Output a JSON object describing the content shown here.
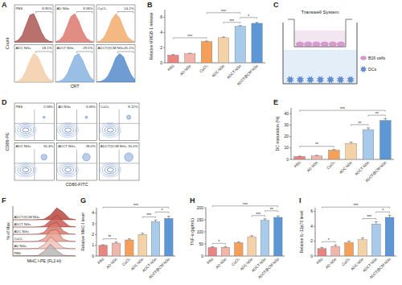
{
  "chart_data": [
    {
      "type": "histogram_grid",
      "panel": "A",
      "x_label": "CRT",
      "y_label": "Count",
      "tick_labels": false,
      "xlim": [
        0,
        10
      ],
      "ylim": [
        0,
        100
      ],
      "x": [
        0,
        1,
        2,
        3,
        4,
        5,
        6,
        7,
        8,
        9,
        10
      ],
      "series": [
        {
          "name": "PBS",
          "color": "#a0413c",
          "values": [
            2,
            8,
            25,
            60,
            95,
            100,
            70,
            35,
            12,
            4,
            1
          ],
          "gate_percent": {
            "value": 8.95,
            "label": "8.95%"
          }
        },
        {
          "name": "AD NGs",
          "color": "#d7675e",
          "values": [
            2,
            7,
            22,
            55,
            90,
            100,
            75,
            40,
            15,
            5,
            1
          ],
          "gate_percent": {
            "value": 9.58,
            "label": "9.58%"
          }
        },
        {
          "name": "CuCl₂",
          "color": "#f0a05a",
          "values": [
            1,
            5,
            18,
            45,
            80,
            100,
            85,
            50,
            20,
            7,
            2
          ],
          "gate_percent": {
            "value": 14.2,
            "label": "14.2%"
          }
        },
        {
          "name": "ADC NGs",
          "color": "#f2c79c",
          "values": [
            1,
            4,
            15,
            40,
            75,
            100,
            90,
            60,
            28,
            10,
            3
          ],
          "gate_percent": {
            "value": 18.1,
            "label": "18.1%"
          }
        },
        {
          "name": "ADCT NGs",
          "color": "#79a8dc",
          "values": [
            1,
            3,
            10,
            28,
            60,
            92,
            100,
            78,
            45,
            18,
            5
          ],
          "gate_percent": {
            "value": 29.5,
            "label": "29.5%"
          }
        },
        {
          "name": "ADCT@CM NGs",
          "color": "#3f7cc4",
          "values": [
            1,
            2,
            8,
            22,
            50,
            85,
            100,
            88,
            55,
            25,
            8
          ],
          "gate_percent": {
            "value": 35.1,
            "label": "35.1%"
          }
        }
      ]
    },
    {
      "type": "bar",
      "panel": "B",
      "y_label": "Relative HMGB-1 release",
      "categories": [
        "PBS",
        "AD NGs",
        "CuCl₂",
        "ADC NGs",
        "ADCT NGs",
        "ADCT@CM NGs"
      ],
      "values": [
        1.0,
        1.2,
        2.8,
        3.3,
        4.8,
        5.2
      ],
      "errors": [
        0.08,
        0.06,
        0.07,
        0.1,
        0.1,
        0.12
      ],
      "colors": [
        "#e98580",
        "#f2b5ac",
        "#f5a05a",
        "#f3d2a8",
        "#a8cbeb",
        "#5e97d6"
      ],
      "ylim": [
        0,
        7
      ],
      "yticks": [
        0,
        2,
        4,
        6
      ],
      "annotations": [
        {
          "from": 0,
          "to": 2,
          "label": "***"
        },
        {
          "from": 3,
          "to": 4,
          "label": "***"
        },
        {
          "from": 4,
          "to": 5,
          "label": "*"
        },
        {
          "from": 2,
          "to": 4,
          "label": "***"
        }
      ]
    },
    {
      "type": "diagram",
      "panel": "C",
      "title": "Transwell System",
      "annotations": [
        "B16 cells",
        "DCs"
      ]
    },
    {
      "type": "scatter_grid",
      "panel": "D",
      "x_label": "CD80-FITC",
      "y_label": "CD86-PE",
      "tick_labels": false,
      "plots": [
        {
          "name": "PBS",
          "gate_percent": {
            "value": 2.58,
            "label": "2.58%"
          }
        },
        {
          "name": "AD NGs",
          "gate_percent": {
            "value": 3.09,
            "label": "3.09%"
          }
        },
        {
          "name": "CuCl₂",
          "gate_percent": {
            "value": 8.12,
            "label": "8.12%"
          }
        },
        {
          "name": "ADC NGs",
          "gate_percent": {
            "value": 16.4,
            "label": "16.4%"
          }
        },
        {
          "name": "ADCT NGs",
          "gate_percent": {
            "value": 28.0,
            "label": "28.0%"
          }
        },
        {
          "name": "ADCT@CM NGs",
          "gate_percent": {
            "value": 35.0,
            "label": "35.0%"
          }
        }
      ]
    },
    {
      "type": "bar",
      "panel": "E",
      "y_label": "DC maturation (%)",
      "categories": [
        "PBS",
        "AD NGs",
        "CuCl₂",
        "ADC NGs",
        "ADCT NGs",
        "ADCT@CM NGs"
      ],
      "values": [
        2.5,
        3.1,
        8,
        14,
        26,
        34
      ],
      "errors": [
        0.4,
        0.5,
        0.6,
        1.2,
        1.5,
        1.8
      ],
      "colors": [
        "#e98580",
        "#f2b5ac",
        "#f5a05a",
        "#f3d2a8",
        "#a8cbeb",
        "#5e97d6"
      ],
      "ylim": [
        0,
        45
      ],
      "yticks": [
        0,
        10,
        20,
        30,
        40
      ],
      "annotations": [
        {
          "from": 0,
          "to": 2,
          "label": "**"
        },
        {
          "from": 3,
          "to": 4,
          "label": "**"
        },
        {
          "from": 4,
          "to": 5,
          "label": "**"
        },
        {
          "from": 0,
          "to": 5,
          "label": "***"
        }
      ]
    },
    {
      "type": "histogram_overlay",
      "panel": "F",
      "x_label": "MHC I-PE (FL2-H)",
      "y_label": "% of Max",
      "tick_labels": false,
      "xlim": [
        0,
        10
      ],
      "ylim": [
        0,
        100
      ],
      "x": [
        0,
        1,
        2,
        3,
        4,
        5,
        6,
        7,
        8,
        9,
        10
      ],
      "series": [
        {
          "name": "PBS",
          "color": "#b8b8b8",
          "values": [
            0,
            0,
            0,
            1,
            5,
            40,
            100,
            45,
            8,
            1,
            0
          ]
        },
        {
          "name": "AD NGs",
          "color": "#f2c4bc",
          "values": [
            0,
            0,
            0,
            1,
            4,
            35,
            100,
            55,
            10,
            1,
            0
          ]
        },
        {
          "name": "CuCl₂",
          "color": "#e8a090",
          "values": [
            0,
            0,
            0,
            0,
            3,
            25,
            90,
            100,
            20,
            3,
            0
          ]
        },
        {
          "name": "ADC NGs",
          "color": "#d9786a",
          "values": [
            0,
            0,
            0,
            0,
            2,
            18,
            80,
            100,
            30,
            4,
            0
          ]
        },
        {
          "name": "ADCT NGs",
          "color": "#c95a50",
          "values": [
            0,
            0,
            0,
            0,
            1,
            10,
            55,
            100,
            50,
            8,
            1
          ]
        },
        {
          "name": "ADCT@CM NGs",
          "color": "#b8453d",
          "values": [
            0,
            0,
            0,
            0,
            1,
            6,
            40,
            100,
            65,
            12,
            1
          ]
        }
      ]
    },
    {
      "type": "bar",
      "panel": "G",
      "y_label": "Relative MHC-I level",
      "categories": [
        "PBS",
        "AD NGs",
        "CuCl₂",
        "ADC NGs",
        "ADCT NGs",
        "ADCT@CM NGs"
      ],
      "values": [
        1.0,
        1.2,
        1.5,
        2.0,
        3.2,
        3.5
      ],
      "errors": [
        0.05,
        0.1,
        0.1,
        0.12,
        0.15,
        0.2
      ],
      "colors": [
        "#e98580",
        "#f2b5ac",
        "#f5a05a",
        "#f3d2a8",
        "#a8cbeb",
        "#5e97d6"
      ],
      "ylim": [
        0,
        4.5
      ],
      "yticks": [
        0,
        1,
        2,
        3,
        4
      ],
      "annotations": [
        {
          "from": 0,
          "to": 1,
          "label": "**"
        },
        {
          "from": 3,
          "to": 4,
          "label": "***"
        },
        {
          "from": 4,
          "to": 5,
          "label": "*"
        },
        {
          "from": 0,
          "to": 5,
          "label": "***"
        }
      ]
    },
    {
      "type": "bar",
      "panel": "H",
      "y_label": "TNF-α (pg/mL)",
      "categories": [
        "PBS",
        "AD NGs",
        "CuCl₂",
        "ADC NGs",
        "ADCT NGs",
        "ADCT@CM NGs"
      ],
      "values": [
        35,
        36,
        55,
        80,
        148,
        160
      ],
      "errors": [
        3,
        3,
        4,
        4,
        6,
        6
      ],
      "colors": [
        "#e98580",
        "#f2b5ac",
        "#f5a05a",
        "#f3d2a8",
        "#a8cbeb",
        "#5e97d6"
      ],
      "ylim": [
        0,
        200
      ],
      "yticks": [
        0,
        50,
        100,
        150,
        200
      ],
      "annotations": [
        {
          "from": 0,
          "to": 1,
          "label": "*"
        },
        {
          "from": 3,
          "to": 4,
          "label": "***"
        },
        {
          "from": 4,
          "to": 5,
          "label": "**"
        },
        {
          "from": 0,
          "to": 5,
          "label": "***"
        }
      ]
    },
    {
      "type": "bar",
      "panel": "I",
      "y_label": "Relative IL-12p70 level",
      "categories": [
        "PBS",
        "AD NGs",
        "CuCl₂",
        "ADC NGs",
        "ADCT NGs",
        "ADCT@CM NGs"
      ],
      "values": [
        1.0,
        1.3,
        1.8,
        2.2,
        4.3,
        5.2
      ],
      "errors": [
        0.15,
        0.2,
        0.2,
        0.25,
        0.3,
        0.3
      ],
      "colors": [
        "#e98580",
        "#f2b5ac",
        "#f5a05a",
        "#f3d2a8",
        "#a8cbeb",
        "#5e97d6"
      ],
      "ylim": [
        0,
        6.5
      ],
      "yticks": [
        0,
        2,
        4,
        6
      ],
      "annotations": [
        {
          "from": 0,
          "to": 1,
          "label": "*"
        },
        {
          "from": 3,
          "to": 4,
          "label": "***"
        },
        {
          "from": 4,
          "to": 5,
          "label": "*"
        },
        {
          "from": 0,
          "to": 5,
          "label": "***"
        }
      ]
    }
  ]
}
